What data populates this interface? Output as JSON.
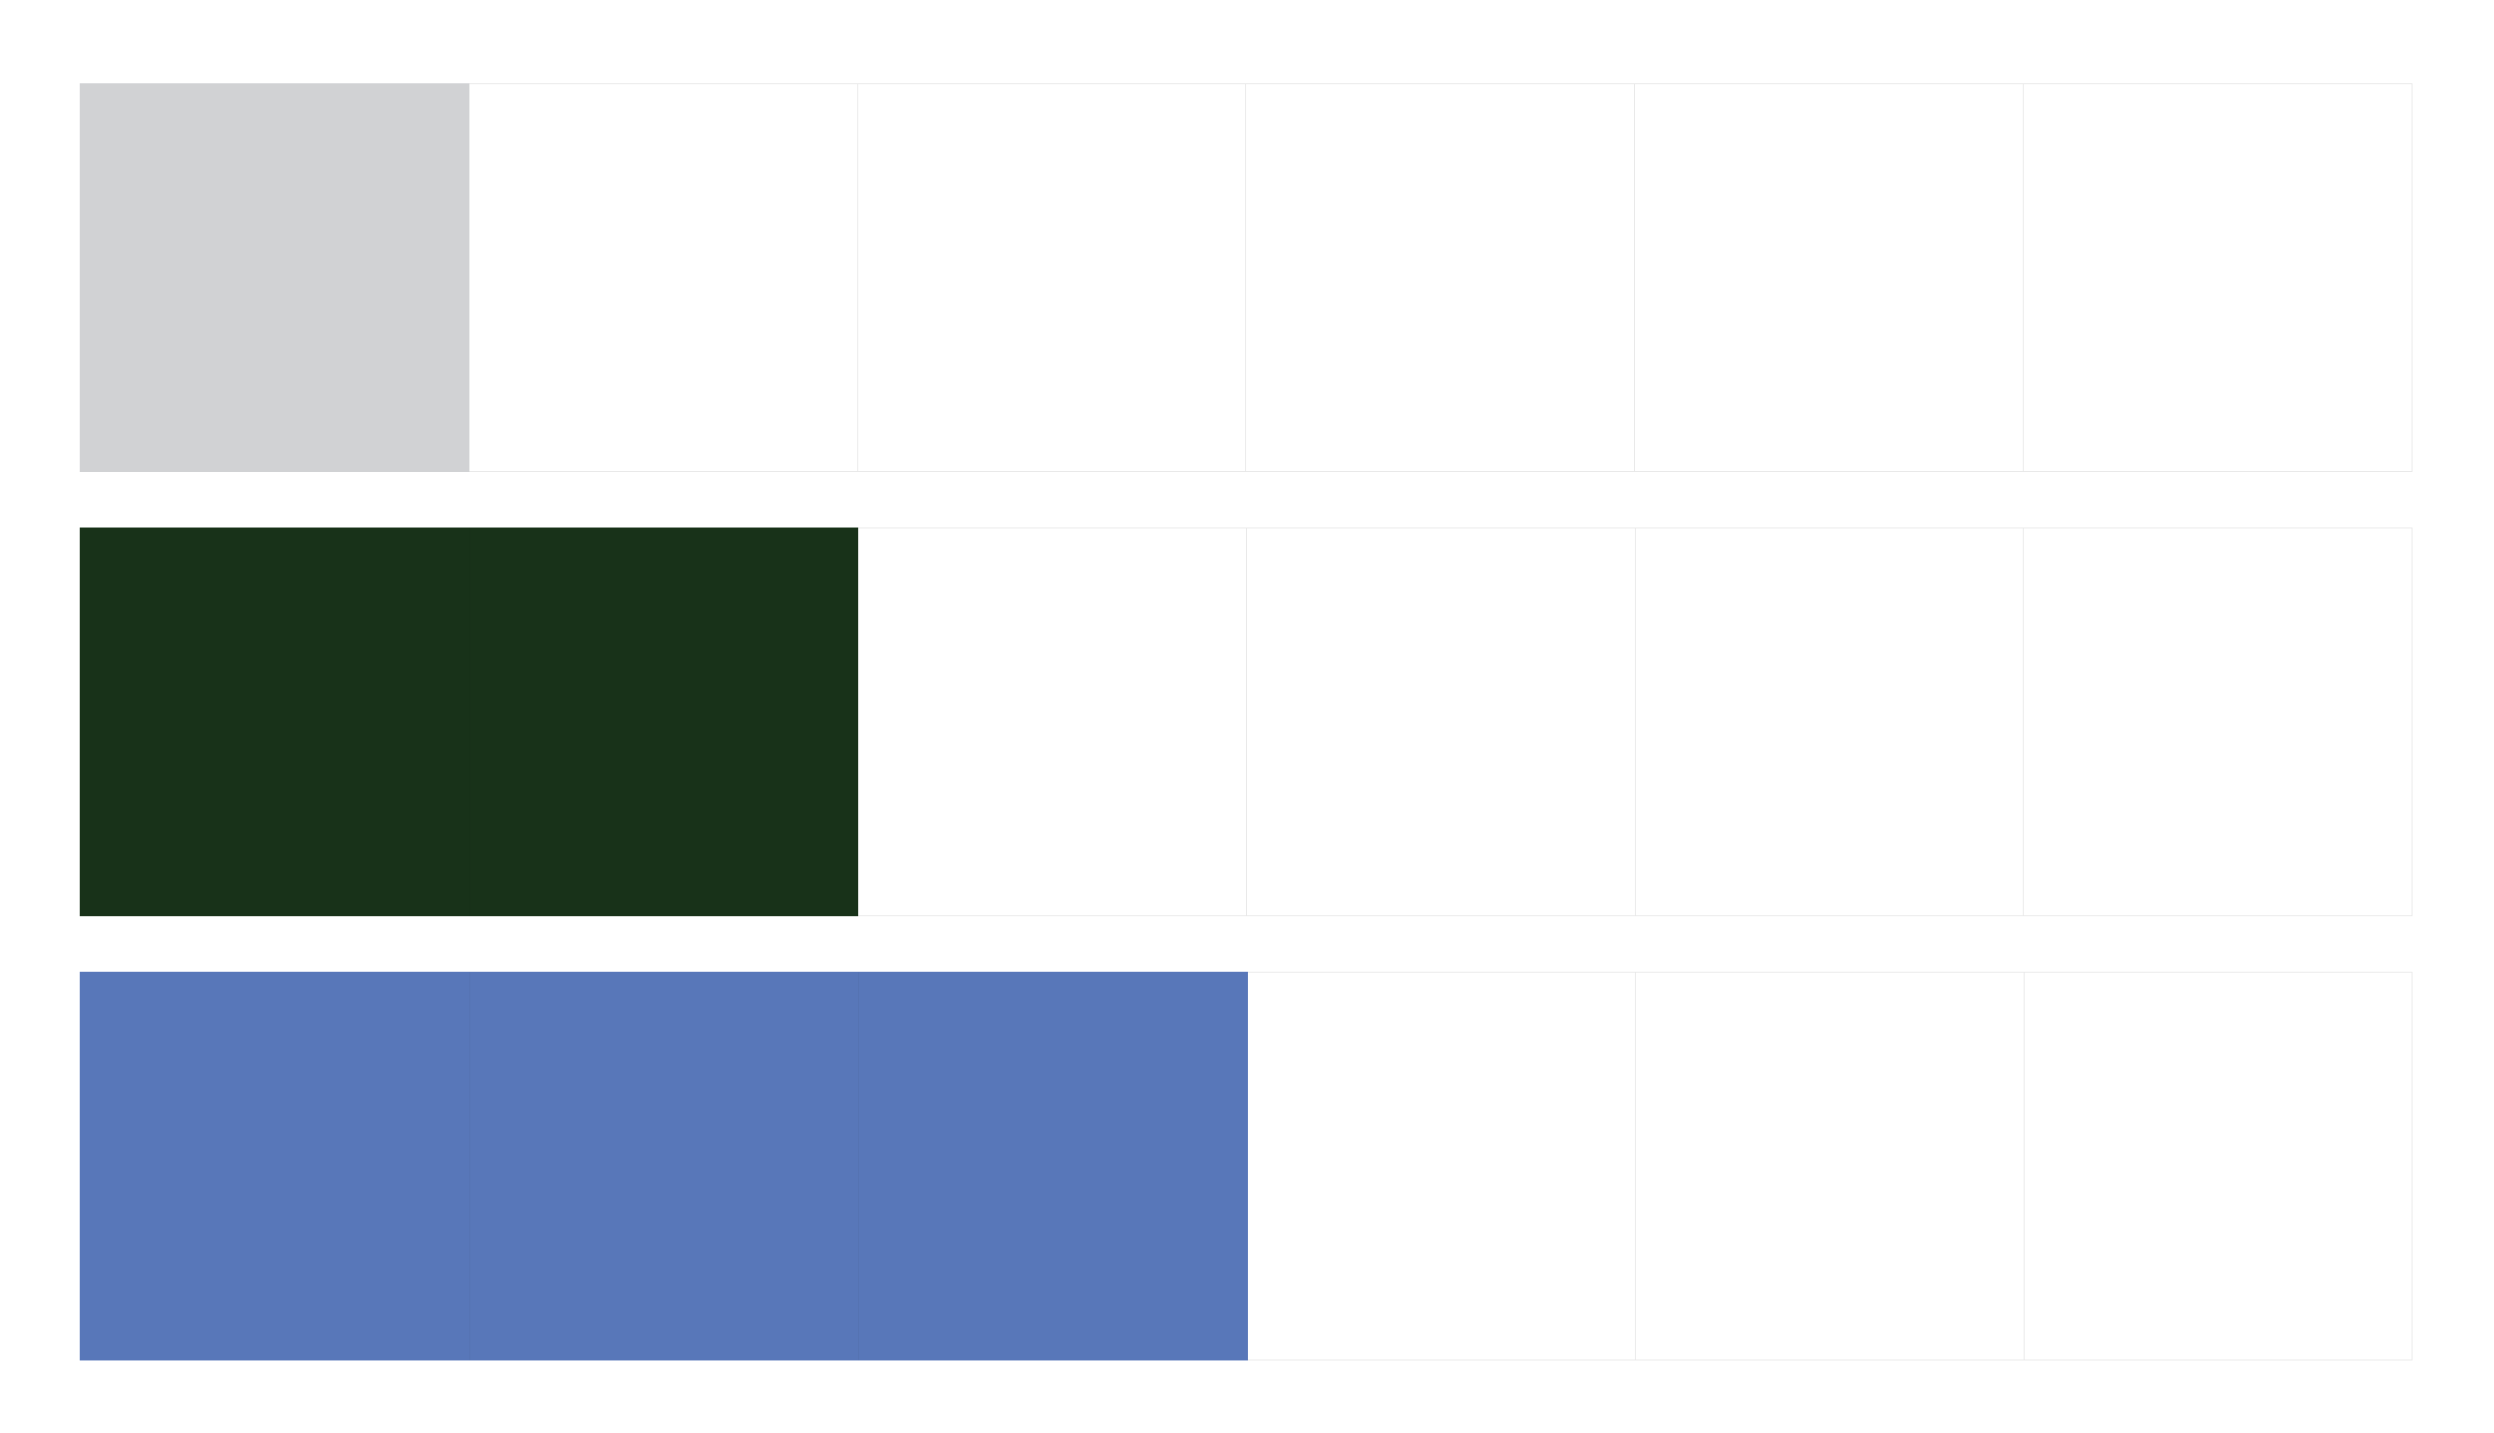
{
  "rows": [
    {
      "cells": 6,
      "filled": 1,
      "color": "#d1d2d4"
    },
    {
      "cells": 6,
      "filled": 2,
      "color": "#183219"
    },
    {
      "cells": 6,
      "filled": 3,
      "color": "#5877b9"
    }
  ],
  "empty_color": "#ffffff",
  "border_color": "#e8e8e8"
}
